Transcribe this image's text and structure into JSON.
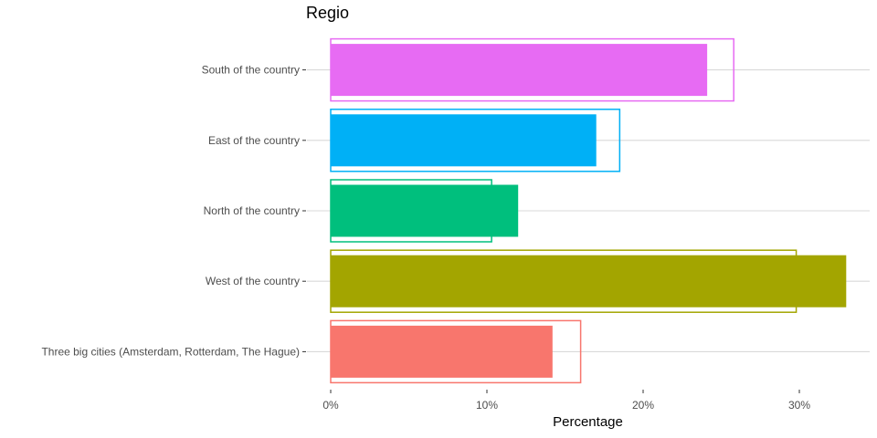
{
  "chart_data": {
    "type": "bar",
    "orientation": "horizontal",
    "title": "Regio",
    "xlabel": "Percentage",
    "ylabel": "",
    "categories": [
      "Three big cities (Amsterdam, Rotterdam, The Hague)",
      "West of the country",
      "North  of the country",
      "East  of the country",
      "South  of the country"
    ],
    "series": [
      {
        "values": [
          14.2,
          33.0,
          12.0,
          17.0,
          24.1
        ],
        "style": "filled"
      },
      {
        "values": [
          16.0,
          29.8,
          10.3,
          18.5,
          25.8
        ],
        "style": "outline"
      }
    ],
    "colors": [
      "#F8766D",
      "#A3A500",
      "#00BF7D",
      "#00B0F6",
      "#E76BF3"
    ],
    "xlim": [
      0,
      34
    ],
    "xticks": [
      0,
      10,
      20,
      30
    ],
    "xtick_labels": [
      "0%",
      "10%",
      "20%",
      "30%"
    ],
    "grid": true,
    "legend": "none"
  }
}
